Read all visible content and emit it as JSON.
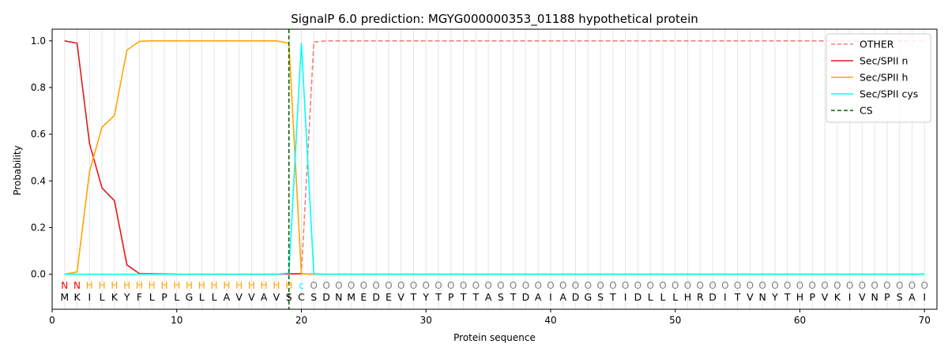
{
  "chart_data": {
    "type": "line",
    "title": "SignalP 6.0 prediction: MGYG000000353_01188 hypothetical protein",
    "xlabel": "Protein sequence",
    "ylabel": "Probability",
    "xlim": [
      0,
      71
    ],
    "ylim": [
      -0.15,
      1.05
    ],
    "x_ticks": [
      0,
      10,
      20,
      30,
      40,
      50,
      60,
      70
    ],
    "y_ticks": [
      0.0,
      0.2,
      0.4,
      0.6,
      0.8,
      1.0
    ],
    "x_tick_labels": [
      "0",
      "10",
      "20",
      "30",
      "40",
      "50",
      "60",
      "70"
    ],
    "y_tick_labels": [
      "0.0",
      "0.2",
      "0.4",
      "0.6",
      "0.8",
      "1.0"
    ],
    "legend_position": "top-right",
    "sequence": [
      "M",
      "K",
      "I",
      "L",
      "K",
      "Y",
      "F",
      "L",
      "P",
      "L",
      "G",
      "L",
      "L",
      "A",
      "V",
      "V",
      "A",
      "V",
      "S",
      "C",
      "S",
      "D",
      "N",
      "M",
      "E",
      "D",
      "E",
      "V",
      "T",
      "Y",
      "T",
      "P",
      "T",
      "T",
      "A",
      "S",
      "T",
      "D",
      "A",
      "I",
      "A",
      "D",
      "G",
      "S",
      "T",
      "I",
      "D",
      "L",
      "L",
      "L",
      "H",
      "R",
      "D",
      "I",
      "T",
      "V",
      "N",
      "Y",
      "T",
      "H",
      "P",
      "V",
      "K",
      "I",
      "V",
      "N",
      "P",
      "S",
      "A",
      "I"
    ],
    "annotation": [
      "N",
      "N",
      "H",
      "H",
      "H",
      "H",
      "H",
      "H",
      "H",
      "H",
      "H",
      "H",
      "H",
      "H",
      "H",
      "H",
      "H",
      "H",
      "H",
      "c",
      "O",
      "O",
      "O",
      "O",
      "O",
      "O",
      "O",
      "O",
      "O",
      "O",
      "O",
      "O",
      "O",
      "O",
      "O",
      "O",
      "O",
      "O",
      "O",
      "O",
      "O",
      "O",
      "O",
      "O",
      "O",
      "O",
      "O",
      "O",
      "O",
      "O",
      "O",
      "O",
      "O",
      "O",
      "O",
      "O",
      "O",
      "O",
      "O",
      "O",
      "O",
      "O",
      "O",
      "O",
      "O",
      "O",
      "O",
      "O",
      "O",
      "O"
    ],
    "annotation_colors": {
      "N": "#ff0000",
      "H": "#ffa500",
      "c": "#00ffff",
      "O": "#808080"
    },
    "cleavage_site": 19,
    "series": [
      {
        "name": "OTHER",
        "color": "#f08080",
        "style": "dashed",
        "values": [
          0,
          0,
          0,
          0,
          0,
          0,
          0,
          0,
          0,
          0,
          0,
          0,
          0,
          0,
          0,
          0,
          0,
          0,
          0,
          0.003,
          0.995,
          1,
          1,
          1,
          1,
          1,
          1,
          1,
          1,
          1,
          1,
          1,
          1,
          1,
          1,
          1,
          1,
          1,
          1,
          1,
          1,
          1,
          1,
          1,
          1,
          1,
          1,
          1,
          1,
          1,
          1,
          1,
          1,
          1,
          1,
          1,
          1,
          1,
          1,
          1,
          1,
          1,
          1,
          1,
          1,
          1,
          1,
          1,
          1,
          1
        ]
      },
      {
        "name": "Sec/SPII n",
        "color": "#e31a1c",
        "style": "solid",
        "values": [
          1.0,
          0.99,
          0.56,
          0.37,
          0.315,
          0.04,
          0.003,
          0.002,
          0.001,
          0,
          0,
          0,
          0,
          0,
          0,
          0,
          0,
          0,
          0.002,
          0.002,
          0,
          0,
          0,
          0,
          0,
          0,
          0,
          0,
          0,
          0,
          0,
          0,
          0,
          0,
          0,
          0,
          0,
          0,
          0,
          0,
          0,
          0,
          0,
          0,
          0,
          0,
          0,
          0,
          0,
          0,
          0,
          0,
          0,
          0,
          0,
          0,
          0,
          0,
          0,
          0,
          0,
          0,
          0,
          0,
          0,
          0,
          0,
          0,
          0,
          0
        ]
      },
      {
        "name": "Sec/SPII h",
        "color": "#ffa500",
        "style": "solid",
        "values": [
          0,
          0.01,
          0.44,
          0.63,
          0.68,
          0.96,
          0.998,
          1.0,
          1.0,
          1.0,
          1.0,
          1.0,
          1.0,
          1.0,
          1.0,
          1.0,
          1.0,
          1.0,
          0.99,
          0.002,
          0,
          0,
          0,
          0,
          0,
          0,
          0,
          0,
          0,
          0,
          0,
          0,
          0,
          0,
          0,
          0,
          0,
          0,
          0,
          0,
          0,
          0,
          0,
          0,
          0,
          0,
          0,
          0,
          0,
          0,
          0,
          0,
          0,
          0,
          0,
          0,
          0,
          0,
          0,
          0,
          0,
          0,
          0,
          0,
          0,
          0,
          0,
          0,
          0,
          0
        ]
      },
      {
        "name": "Sec/SPII cys",
        "color": "#00ffff",
        "style": "solid",
        "values": [
          0,
          0,
          0,
          0,
          0,
          0,
          0,
          0,
          0,
          0,
          0,
          0,
          0,
          0,
          0,
          0,
          0,
          0,
          0.005,
          0.99,
          0.002,
          0,
          0,
          0,
          0,
          0,
          0,
          0,
          0,
          0,
          0,
          0,
          0,
          0,
          0,
          0,
          0,
          0,
          0,
          0,
          0,
          0,
          0,
          0,
          0,
          0,
          0,
          0,
          0,
          0,
          0,
          0,
          0,
          0,
          0,
          0,
          0,
          0,
          0,
          0,
          0,
          0,
          0,
          0,
          0,
          0,
          0,
          0,
          0,
          0
        ]
      }
    ],
    "cs_legend": {
      "name": "CS",
      "color": "#006400",
      "style": "dashed"
    }
  }
}
